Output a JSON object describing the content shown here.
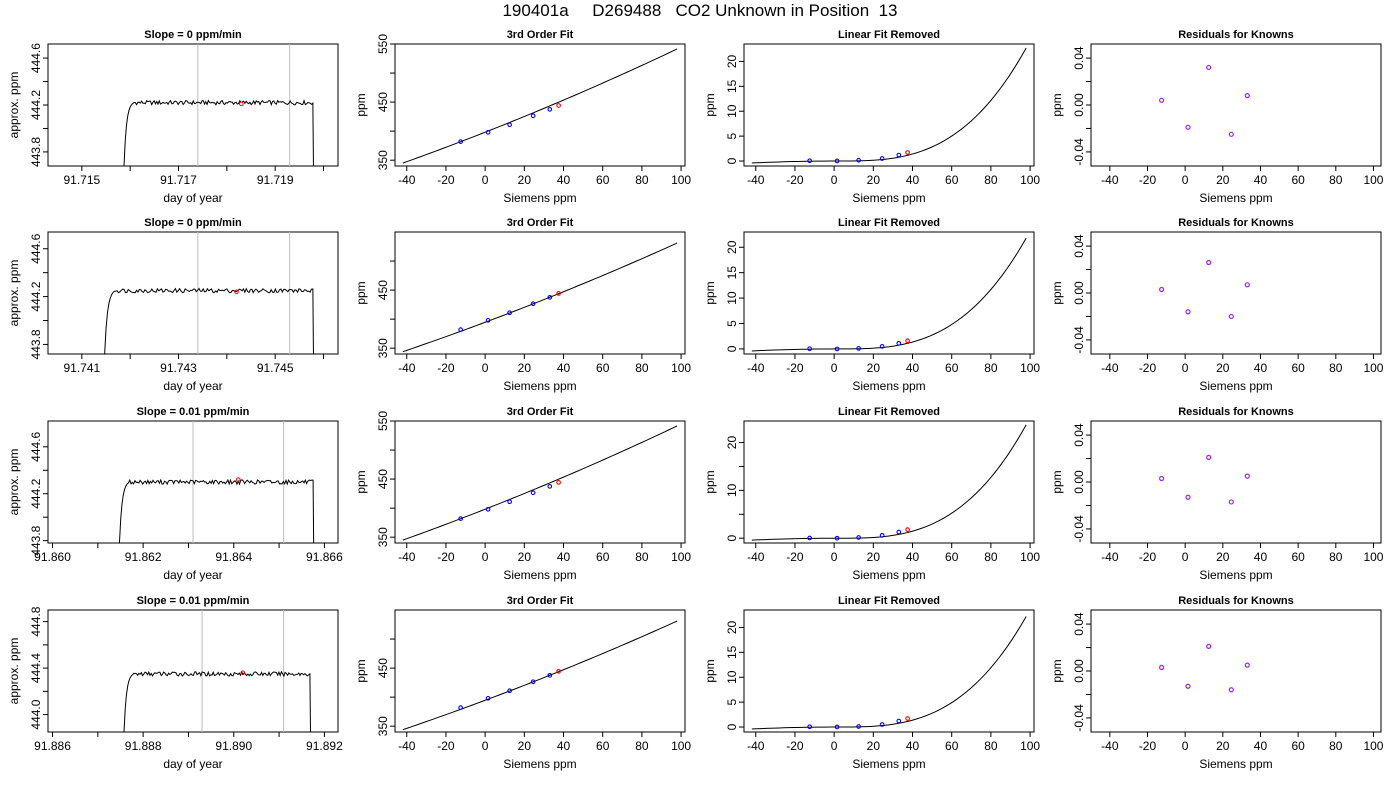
{
  "page_title": "190401a     D269488   CO2 Unknown in Position  13",
  "colors": {
    "trace": "#000000",
    "window": "#bdbdbd",
    "known": "#0000ff",
    "unknown": "#ff0000",
    "residual": "#a020f0",
    "fit": "#000000"
  },
  "chart_data": [
    {
      "row": 1,
      "panels": [
        {
          "type": "line",
          "title": "Slope =  0  ppm/min",
          "xlabel": "day of year",
          "ylabel": "approx. ppm",
          "xlim": [
            91.7143,
            91.7203
          ],
          "ylim": [
            443.68,
            444.72
          ],
          "xticks": [
            91.715,
            91.716,
            91.717,
            91.718,
            91.719,
            91.72
          ],
          "xticklabels": [
            "91.715",
            "",
            "91.717",
            "",
            "91.719",
            ""
          ],
          "yticks": [
            443.8,
            444.0,
            444.2,
            444.4,
            444.6
          ],
          "yticklabels": [
            "443.8",
            "",
            "444.2",
            "",
            "444.6"
          ],
          "window": [
            91.7174,
            91.7193
          ],
          "marker": [
            91.7183,
            444.21
          ],
          "trace": {
            "start": 91.7158,
            "end": 91.71978,
            "level": 444.22,
            "low": 443.68
          }
        },
        {
          "type": "scatter",
          "title": "3rd Order Fit",
          "xlabel": "Siemens ppm",
          "ylabel": "ppm",
          "xlim": [
            -46,
            102
          ],
          "ylim": [
            340,
            550
          ],
          "xticks": [
            -40,
            -20,
            0,
            20,
            40,
            60,
            80,
            100
          ],
          "yticks": [
            350,
            400,
            450,
            500,
            550
          ],
          "yticklabels": [
            "350",
            "",
            "450",
            "",
            "550"
          ],
          "knowns": [
            [
              -12.5,
              382.0
            ],
            [
              1.5,
              398.0
            ],
            [
              12.5,
              411.0
            ],
            [
              24.5,
              426.5
            ],
            [
              33.0,
              437.5
            ]
          ],
          "unknown": [
            37.5,
            444.2
          ],
          "curve_x": [
            -42,
            98
          ],
          "curve_y": [
            345.0,
            541.5
          ]
        },
        {
          "type": "scatter",
          "title": "Linear Fit Removed",
          "xlabel": "Siemens ppm",
          "ylabel": "ppm",
          "xlim": [
            -46,
            102
          ],
          "ylim": [
            -1,
            23.5
          ],
          "xticks": [
            -40,
            -20,
            0,
            20,
            40,
            60,
            80,
            100
          ],
          "yticks": [
            0,
            5,
            10,
            15,
            20
          ],
          "knowns": [
            [
              -12.5,
              0.05
            ],
            [
              1.5,
              0.0
            ],
            [
              12.5,
              0.15
            ],
            [
              24.5,
              0.5
            ],
            [
              33.0,
              1.2
            ]
          ],
          "unknown": [
            37.5,
            1.7
          ],
          "curve_x": [
            -42,
            98
          ],
          "curve_ymax": 22.7
        },
        {
          "type": "scatter",
          "title": "Residuals for Knowns",
          "xlabel": "Siemens ppm",
          "ylabel": "ppm",
          "xlim": [
            -50,
            104
          ],
          "ylim": [
            -0.052,
            0.052
          ],
          "xticks": [
            -40,
            -20,
            0,
            20,
            40,
            60,
            80,
            100
          ],
          "yticks": [
            -0.04,
            -0.02,
            0.0,
            0.02,
            0.04
          ],
          "yticklabels": [
            "-0.04",
            "",
            "0.00",
            "",
            "0.04"
          ],
          "points": [
            [
              -12.5,
              0.004
            ],
            [
              1.5,
              -0.019
            ],
            [
              12.5,
              0.032
            ],
            [
              24.5,
              -0.025
            ],
            [
              33.0,
              0.008
            ]
          ]
        }
      ]
    },
    {
      "row": 2,
      "panels": [
        {
          "type": "line",
          "title": "Slope =  0  ppm/min",
          "xlabel": "day of year",
          "ylabel": "approx. ppm",
          "xlim": [
            91.7403,
            91.7463
          ],
          "ylim": [
            443.72,
            444.74
          ],
          "xticks": [
            91.741,
            91.742,
            91.743,
            91.744,
            91.745,
            91.746
          ],
          "xticklabels": [
            "91.741",
            "",
            "91.743",
            "",
            "91.745",
            ""
          ],
          "yticks": [
            443.8,
            444.0,
            444.2,
            444.4,
            444.6
          ],
          "yticklabels": [
            "443.8",
            "",
            "444.2",
            "",
            "444.6"
          ],
          "window": [
            91.7434,
            91.7453
          ],
          "marker": [
            91.7442,
            444.24
          ],
          "trace": {
            "start": 91.7414,
            "end": 91.74578,
            "level": 444.25,
            "low": 443.72
          }
        },
        {
          "type": "scatter",
          "title": "3rd Order Fit",
          "xlabel": "Siemens ppm",
          "ylabel": "ppm",
          "xlim": [
            -46,
            102
          ],
          "ylim": [
            340,
            550
          ],
          "xticks": [
            -40,
            -20,
            0,
            20,
            40,
            60,
            80,
            100
          ],
          "yticks": [
            350,
            400,
            450,
            500
          ],
          "yticklabels": [
            "350",
            "",
            "450",
            ""
          ],
          "knowns": [
            [
              -12.5,
              382.0
            ],
            [
              1.5,
              398.0
            ],
            [
              12.5,
              411.0
            ],
            [
              24.5,
              426.5
            ],
            [
              33.0,
              437.5
            ]
          ],
          "unknown": [
            37.5,
            444.3
          ],
          "curve_x": [
            -42,
            98
          ],
          "curve_y": [
            344.0,
            531.0
          ]
        },
        {
          "type": "scatter",
          "title": "Linear Fit Removed",
          "xlabel": "Siemens ppm",
          "ylabel": "ppm",
          "xlim": [
            -46,
            102
          ],
          "ylim": [
            -1,
            23
          ],
          "xticks": [
            -40,
            -20,
            0,
            20,
            40,
            60,
            80,
            100
          ],
          "yticks": [
            0,
            5,
            10,
            15,
            20
          ],
          "knowns": [
            [
              -12.5,
              0.05
            ],
            [
              1.5,
              0.0
            ],
            [
              12.5,
              0.1
            ],
            [
              24.5,
              0.5
            ],
            [
              33.0,
              1.1
            ]
          ],
          "unknown": [
            37.5,
            1.6
          ],
          "curve_x": [
            -42,
            98
          ],
          "curve_ymax": 21.8
        },
        {
          "type": "scatter",
          "title": "Residuals for Knowns",
          "xlabel": "Siemens ppm",
          "ylabel": "ppm",
          "xlim": [
            -50,
            104
          ],
          "ylim": [
            -0.052,
            0.052
          ],
          "xticks": [
            -40,
            -20,
            0,
            20,
            40,
            60,
            80,
            100
          ],
          "yticks": [
            -0.04,
            -0.02,
            0.0,
            0.02,
            0.04
          ],
          "yticklabels": [
            "-0.04",
            "",
            "0.00",
            "",
            "0.04"
          ],
          "points": [
            [
              -12.5,
              0.003
            ],
            [
              1.5,
              -0.016
            ],
            [
              12.5,
              0.026
            ],
            [
              24.5,
              -0.02
            ],
            [
              33.0,
              0.007
            ]
          ]
        }
      ]
    },
    {
      "row": 3,
      "panels": [
        {
          "type": "line",
          "title": "Slope =  0.01  ppm/min",
          "xlabel": "day of year",
          "ylabel": "approx. ppm",
          "xlim": [
            91.8599,
            91.8663
          ],
          "ylim": [
            443.78,
            444.82
          ],
          "xticks": [
            91.86,
            91.861,
            91.862,
            91.863,
            91.864,
            91.865,
            91.866
          ],
          "xticklabels": [
            "91.860",
            "",
            "91.862",
            "",
            "91.864",
            "",
            "91.866"
          ],
          "yticks": [
            443.8,
            444.0,
            444.2,
            444.4,
            444.6
          ],
          "yticklabels": [
            "443.8",
            "",
            "444.2",
            "",
            "444.6"
          ],
          "window": [
            91.8631,
            91.8651
          ],
          "marker": [
            91.8641,
            444.32
          ],
          "trace": {
            "start": 91.8614,
            "end": 91.86575,
            "level": 444.3,
            "low": 443.78
          }
        },
        {
          "type": "scatter",
          "title": "3rd Order Fit",
          "xlabel": "Siemens ppm",
          "ylabel": "ppm",
          "xlim": [
            -46,
            102
          ],
          "ylim": [
            340,
            550
          ],
          "xticks": [
            -40,
            -20,
            0,
            20,
            40,
            60,
            80,
            100
          ],
          "yticks": [
            350,
            400,
            450,
            500,
            550
          ],
          "yticklabels": [
            "350",
            "",
            "450",
            "",
            "550"
          ],
          "knowns": [
            [
              -12.5,
              382.0
            ],
            [
              1.5,
              398.0
            ],
            [
              12.5,
              411.0
            ],
            [
              24.5,
              426.5
            ],
            [
              33.0,
              437.5
            ]
          ],
          "unknown": [
            37.5,
            444.3
          ],
          "curve_x": [
            -42,
            98
          ],
          "curve_y": [
            345.0,
            541.5
          ]
        },
        {
          "type": "scatter",
          "title": "Linear Fit Removed",
          "xlabel": "Siemens ppm",
          "ylabel": "ppm",
          "xlim": [
            -46,
            102
          ],
          "ylim": [
            -1,
            24.5
          ],
          "xticks": [
            -40,
            -20,
            0,
            20,
            40,
            60,
            80,
            100
          ],
          "yticks": [
            0,
            5,
            10,
            15,
            20
          ],
          "yticklabels": [
            "0",
            "",
            "10",
            "",
            "20"
          ],
          "knowns": [
            [
              -12.5,
              0.05
            ],
            [
              1.5,
              0.0
            ],
            [
              12.5,
              0.15
            ],
            [
              24.5,
              0.6
            ],
            [
              33.0,
              1.3
            ]
          ],
          "unknown": [
            37.5,
            1.8
          ],
          "curve_x": [
            -42,
            98
          ],
          "curve_ymax": 23.7
        },
        {
          "type": "scatter",
          "title": "Residuals for Knowns",
          "xlabel": "Siemens ppm",
          "ylabel": "ppm",
          "xlim": [
            -50,
            104
          ],
          "ylim": [
            -0.052,
            0.052
          ],
          "xticks": [
            -40,
            -20,
            0,
            20,
            40,
            60,
            80,
            100
          ],
          "yticks": [
            -0.04,
            -0.02,
            0.0,
            0.02,
            0.04
          ],
          "yticklabels": [
            "-0.04",
            "",
            "0.00",
            "",
            "0.04"
          ],
          "points": [
            [
              -12.5,
              0.003
            ],
            [
              1.5,
              -0.013
            ],
            [
              12.5,
              0.021
            ],
            [
              24.5,
              -0.017
            ],
            [
              33.0,
              0.005
            ]
          ]
        }
      ]
    },
    {
      "row": 4,
      "panels": [
        {
          "type": "line",
          "title": "Slope =  0.01  ppm/min",
          "xlabel": "day of year",
          "ylabel": "approx. ppm",
          "xlim": [
            91.8859,
            91.8923
          ],
          "ylim": [
            443.85,
            444.9
          ],
          "xticks": [
            91.886,
            91.887,
            91.888,
            91.889,
            91.89,
            91.891,
            91.892
          ],
          "xticklabels": [
            "91.886",
            "",
            "91.888",
            "",
            "91.890",
            "",
            "91.892"
          ],
          "yticks": [
            444.0,
            444.2,
            444.4,
            444.6,
            444.8
          ],
          "yticklabels": [
            "444.0",
            "",
            "444.4",
            "",
            "444.8"
          ],
          "window": [
            91.8893,
            91.8911
          ],
          "marker": [
            91.8902,
            444.36
          ],
          "trace": {
            "start": 91.8875,
            "end": 91.89168,
            "level": 444.35,
            "low": 443.85
          }
        },
        {
          "type": "scatter",
          "title": "3rd Order Fit",
          "xlabel": "Siemens ppm",
          "ylabel": "ppm",
          "xlim": [
            -46,
            102
          ],
          "ylim": [
            340,
            550
          ],
          "xticks": [
            -40,
            -20,
            0,
            20,
            40,
            60,
            80,
            100
          ],
          "yticks": [
            350,
            400,
            450,
            500
          ],
          "yticklabels": [
            "350",
            "",
            "450",
            ""
          ],
          "knowns": [
            [
              -12.5,
              382.0
            ],
            [
              1.5,
              398.0
            ],
            [
              12.5,
              411.0
            ],
            [
              24.5,
              426.5
            ],
            [
              33.0,
              437.5
            ]
          ],
          "unknown": [
            37.5,
            444.4
          ],
          "curve_x": [
            -42,
            98
          ],
          "curve_y": [
            344.0,
            531.0
          ]
        },
        {
          "type": "scatter",
          "title": "Linear Fit Removed",
          "xlabel": "Siemens ppm",
          "ylabel": "ppm",
          "xlim": [
            -46,
            102
          ],
          "ylim": [
            -1,
            23.5
          ],
          "xticks": [
            -40,
            -20,
            0,
            20,
            40,
            60,
            80,
            100
          ],
          "yticks": [
            0,
            5,
            10,
            15,
            20
          ],
          "knowns": [
            [
              -12.5,
              0.05
            ],
            [
              1.5,
              0.0
            ],
            [
              12.5,
              0.1
            ],
            [
              24.5,
              0.5
            ],
            [
              33.0,
              1.2
            ]
          ],
          "unknown": [
            37.5,
            1.7
          ],
          "curve_x": [
            -42,
            98
          ],
          "curve_ymax": 22.2
        },
        {
          "type": "scatter",
          "title": "Residuals for Knowns",
          "xlabel": "Siemens ppm",
          "ylabel": "ppm",
          "xlim": [
            -50,
            104
          ],
          "ylim": [
            -0.052,
            0.052
          ],
          "xticks": [
            -40,
            -20,
            0,
            20,
            40,
            60,
            80,
            100
          ],
          "yticks": [
            -0.04,
            -0.02,
            0.0,
            0.02,
            0.04
          ],
          "yticklabels": [
            "-0.04",
            "",
            "0.00",
            "",
            "0.04"
          ],
          "points": [
            [
              -12.5,
              0.003
            ],
            [
              1.5,
              -0.013
            ],
            [
              12.5,
              0.021
            ],
            [
              24.5,
              -0.016
            ],
            [
              33.0,
              0.005
            ]
          ]
        }
      ]
    }
  ]
}
